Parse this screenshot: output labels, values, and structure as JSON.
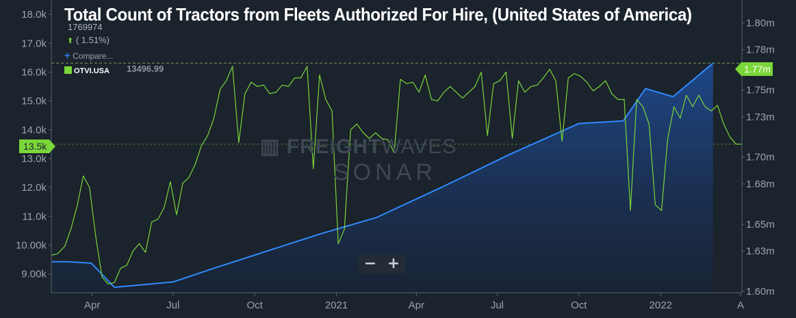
{
  "title": "Total Count of Tractors from Fleets Authorized For Hire, (United States of America)",
  "legend": {
    "value": "1769974",
    "change_arrow": "⬆",
    "change": " ( 1.51%)",
    "compare_icon": "+",
    "compare_label": "Compare...",
    "series_name": "OTVI.USA",
    "series_value": "13496.99"
  },
  "left_badge": "13.5k",
  "right_badge": "1.77m",
  "watermark": {
    "brand_bold": "FREIGHT",
    "brand_thin": "WAVES",
    "product": "SONAR"
  },
  "zoom": {
    "minus": "−",
    "plus": "+"
  },
  "colors": {
    "background": "#1b232c",
    "green_series": "#7bd63a",
    "blue_series": "#2f8bff",
    "area_fill": "#1d3a6e"
  },
  "chart_data": {
    "type": "line",
    "title": "Total Count of Tractors from Fleets Authorized For Hire, (United States of America)",
    "x_ticks": [
      "Apr",
      "Jul",
      "Oct",
      "2021",
      "Apr",
      "Jul",
      "Oct",
      "2022",
      "A"
    ],
    "x_range": [
      "2020-02-15",
      "2022-04-01"
    ],
    "y_left": {
      "ticks": [
        "9.00k",
        "10.00k",
        "11.0k",
        "12.0k",
        "13.0k",
        "14.0k",
        "15.0k",
        "16.0k",
        "17.0k",
        "18.0k"
      ],
      "range": [
        8350,
        18500
      ]
    },
    "y_right": {
      "ticks": [
        "1.60m",
        "1.63m",
        "1.65m",
        "1.68m",
        "1.70m",
        "1.73m",
        "1.75m",
        "1.78m",
        "1.80m"
      ],
      "range": [
        1599000,
        1817000
      ]
    },
    "series": [
      {
        "name": "OTVI.USA",
        "axis": "left",
        "color": "#7bd63a",
        "points": [
          [
            "2020-02-15",
            9650
          ],
          [
            "2020-02-22",
            9700
          ],
          [
            "2020-03-01",
            9950
          ],
          [
            "2020-03-08",
            10550
          ],
          [
            "2020-03-15",
            11350
          ],
          [
            "2020-03-22",
            12400
          ],
          [
            "2020-03-29",
            12000
          ],
          [
            "2020-04-05",
            10300
          ],
          [
            "2020-04-12",
            8900
          ],
          [
            "2020-04-19",
            8650
          ],
          [
            "2020-04-26",
            8700
          ],
          [
            "2020-05-03",
            9200
          ],
          [
            "2020-05-10",
            9300
          ],
          [
            "2020-05-17",
            9800
          ],
          [
            "2020-05-24",
            10050
          ],
          [
            "2020-05-31",
            9750
          ],
          [
            "2020-06-07",
            10800
          ],
          [
            "2020-06-14",
            10900
          ],
          [
            "2020-06-21",
            11300
          ],
          [
            "2020-06-28",
            12200
          ],
          [
            "2020-07-05",
            11050
          ],
          [
            "2020-07-12",
            12150
          ],
          [
            "2020-07-19",
            12350
          ],
          [
            "2020-07-26",
            12800
          ],
          [
            "2020-08-02",
            13450
          ],
          [
            "2020-08-09",
            13800
          ],
          [
            "2020-08-16",
            14400
          ],
          [
            "2020-08-23",
            15400
          ],
          [
            "2020-08-30",
            15700
          ],
          [
            "2020-09-06",
            16200
          ],
          [
            "2020-09-13",
            13550
          ],
          [
            "2020-09-20",
            15250
          ],
          [
            "2020-09-27",
            15650
          ],
          [
            "2020-10-04",
            15500
          ],
          [
            "2020-10-11",
            15550
          ],
          [
            "2020-10-18",
            15250
          ],
          [
            "2020-10-25",
            15300
          ],
          [
            "2020-11-01",
            15550
          ],
          [
            "2020-11-08",
            15500
          ],
          [
            "2020-11-15",
            15800
          ],
          [
            "2020-11-22",
            15800
          ],
          [
            "2020-11-29",
            16200
          ],
          [
            "2020-12-06",
            12650
          ],
          [
            "2020-12-13",
            15900
          ],
          [
            "2020-12-20",
            15050
          ],
          [
            "2020-12-27",
            14650
          ],
          [
            "2021-01-03",
            10050
          ],
          [
            "2021-01-10",
            10550
          ],
          [
            "2021-01-17",
            14000
          ],
          [
            "2021-01-24",
            14200
          ],
          [
            "2021-01-31",
            13900
          ],
          [
            "2021-02-07",
            13700
          ],
          [
            "2021-02-14",
            13900
          ],
          [
            "2021-02-21",
            13700
          ],
          [
            "2021-02-28",
            13650
          ],
          [
            "2021-03-07",
            13200
          ],
          [
            "2021-03-14",
            15750
          ],
          [
            "2021-03-21",
            15600
          ],
          [
            "2021-03-28",
            15650
          ],
          [
            "2021-04-04",
            15300
          ],
          [
            "2021-04-11",
            15900
          ],
          [
            "2021-04-18",
            15050
          ],
          [
            "2021-04-25",
            15000
          ],
          [
            "2021-05-02",
            15300
          ],
          [
            "2021-05-09",
            15500
          ],
          [
            "2021-05-16",
            15300
          ],
          [
            "2021-05-23",
            15100
          ],
          [
            "2021-05-30",
            15300
          ],
          [
            "2021-06-06",
            15500
          ],
          [
            "2021-06-13",
            16000
          ],
          [
            "2021-06-20",
            13800
          ],
          [
            "2021-06-27",
            15600
          ],
          [
            "2021-07-04",
            15700
          ],
          [
            "2021-07-11",
            16000
          ],
          [
            "2021-07-18",
            13700
          ],
          [
            "2021-07-25",
            15700
          ],
          [
            "2021-08-01",
            15300
          ],
          [
            "2021-08-08",
            15500
          ],
          [
            "2021-08-15",
            15550
          ],
          [
            "2021-08-22",
            15800
          ],
          [
            "2021-08-29",
            16100
          ],
          [
            "2021-09-05",
            15700
          ],
          [
            "2021-09-12",
            13600
          ],
          [
            "2021-09-19",
            15800
          ],
          [
            "2021-09-26",
            15950
          ],
          [
            "2021-10-03",
            15850
          ],
          [
            "2021-10-10",
            15650
          ],
          [
            "2021-10-17",
            15350
          ],
          [
            "2021-10-24",
            15500
          ],
          [
            "2021-10-31",
            15700
          ],
          [
            "2021-11-07",
            15250
          ],
          [
            "2021-11-14",
            15050
          ],
          [
            "2021-11-21",
            15050
          ],
          [
            "2021-11-28",
            11200
          ],
          [
            "2021-12-05",
            15050
          ],
          [
            "2021-12-12",
            14800
          ],
          [
            "2021-12-19",
            14200
          ],
          [
            "2021-12-26",
            11400
          ],
          [
            "2022-01-02",
            11200
          ],
          [
            "2022-01-09",
            13700
          ],
          [
            "2022-01-16",
            14800
          ],
          [
            "2022-01-23",
            14400
          ],
          [
            "2022-01-30",
            15200
          ],
          [
            "2022-02-06",
            14800
          ],
          [
            "2022-02-13",
            15200
          ],
          [
            "2022-02-20",
            14800
          ],
          [
            "2022-02-27",
            14650
          ],
          [
            "2022-03-06",
            14850
          ],
          [
            "2022-03-13",
            14200
          ],
          [
            "2022-03-20",
            13750
          ],
          [
            "2022-03-27",
            13500
          ],
          [
            "2022-04-03",
            13500
          ]
        ]
      },
      {
        "name": "",
        "axis": "right",
        "color": "#2f8bff",
        "points": [
          [
            "2020-02-15",
            1622000
          ],
          [
            "2020-03-05",
            1622000
          ],
          [
            "2020-03-31",
            1621000
          ],
          [
            "2020-04-26",
            1603000
          ],
          [
            "2020-07-01",
            1607000
          ],
          [
            "2020-08-15",
            1617000
          ],
          [
            "2020-10-15",
            1630000
          ],
          [
            "2020-12-15",
            1643000
          ],
          [
            "2021-02-15",
            1655000
          ],
          [
            "2021-05-01",
            1678000
          ],
          [
            "2021-07-15",
            1702000
          ],
          [
            "2021-10-01",
            1725000
          ],
          [
            "2021-11-20",
            1727000
          ],
          [
            "2021-12-15",
            1751000
          ],
          [
            "2022-01-15",
            1745000
          ],
          [
            "2022-03-01",
            1770000
          ]
        ]
      }
    ]
  }
}
